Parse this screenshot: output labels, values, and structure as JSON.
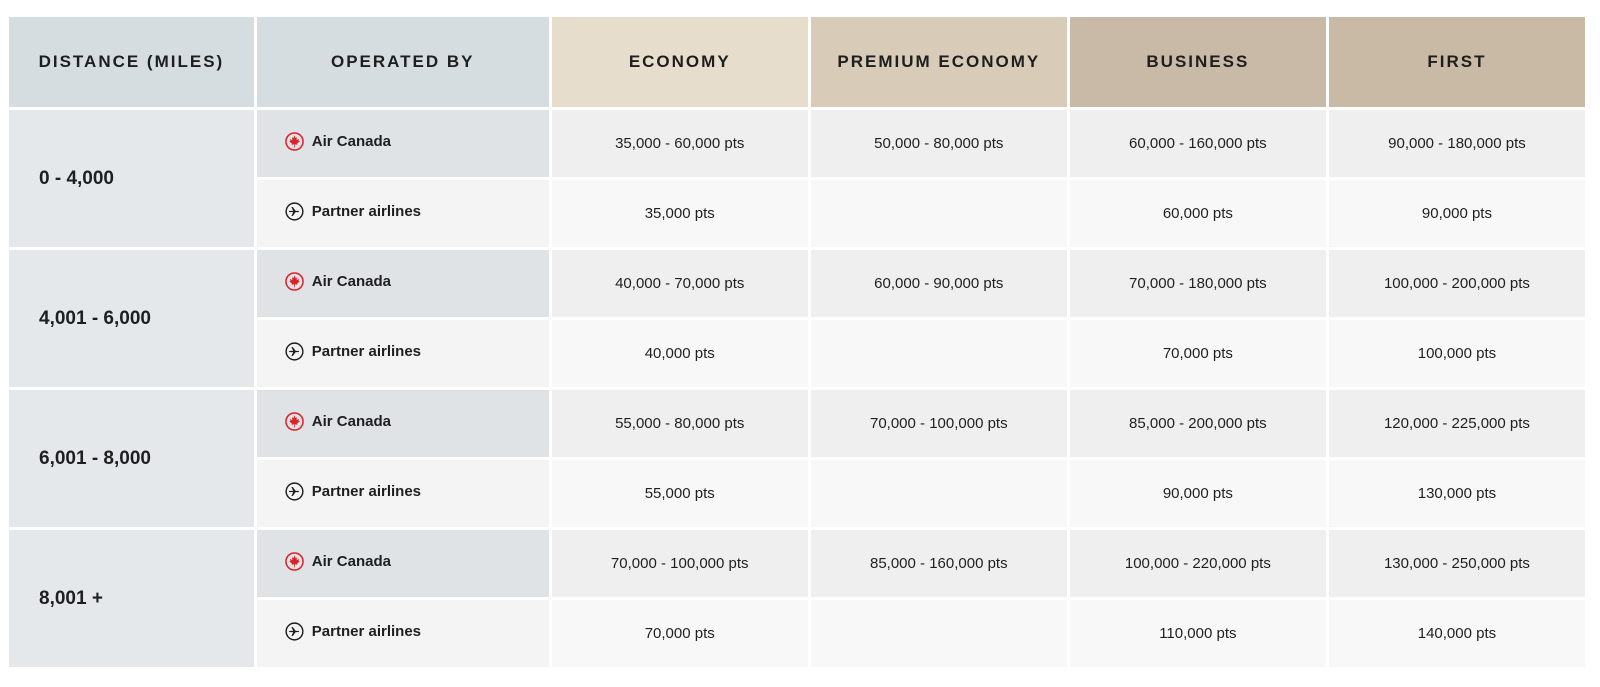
{
  "headers": {
    "distance": "DISTANCE (MILES)",
    "operated_by": "OPERATED BY",
    "economy": "ECONOMY",
    "premium_economy": "PREMIUM ECONOMY",
    "business": "BUSINESS",
    "first": "FIRST"
  },
  "colors": {
    "air_canada_red": "#d8232a",
    "partner_icon": "#1e1e1e"
  },
  "icons": {
    "air_canada": "maple-leaf-icon",
    "partner": "airplane-icon"
  },
  "groups": [
    {
      "range": "0 - 4,000",
      "rows": [
        {
          "operator": "Air Canada",
          "economy": "35,000 - 60,000 pts",
          "premium_economy": "50,000 - 80,000 pts",
          "business": "60,000 - 160,000 pts",
          "first": "90,000 - 180,000 pts"
        },
        {
          "operator": "Partner airlines",
          "economy": "35,000 pts",
          "premium_economy": "",
          "business": "60,000 pts",
          "first": "90,000 pts"
        }
      ]
    },
    {
      "range": "4,001 - 6,000",
      "rows": [
        {
          "operator": "Air Canada",
          "economy": "40,000 - 70,000 pts",
          "premium_economy": "60,000 - 90,000 pts",
          "business": "70,000 - 180,000 pts",
          "first": "100,000 - 200,000 pts"
        },
        {
          "operator": "Partner airlines",
          "economy": "40,000 pts",
          "premium_economy": "",
          "business": "70,000 pts",
          "first": "100,000 pts"
        }
      ]
    },
    {
      "range": "6,001 - 8,000",
      "rows": [
        {
          "operator": "Air Canada",
          "economy": "55,000 - 80,000 pts",
          "premium_economy": "70,000 - 100,000 pts",
          "business": "85,000 - 200,000 pts",
          "first": "120,000 - 225,000 pts"
        },
        {
          "operator": "Partner airlines",
          "economy": "55,000 pts",
          "premium_economy": "",
          "business": "90,000 pts",
          "first": "130,000 pts"
        }
      ]
    },
    {
      "range": "8,001 +",
      "rows": [
        {
          "operator": "Air Canada",
          "economy": "70,000 - 100,000 pts",
          "premium_economy": "85,000 - 160,000 pts",
          "business": "100,000 - 220,000 pts",
          "first": "130,000 - 250,000 pts"
        },
        {
          "operator": "Partner airlines",
          "economy": "70,000 pts",
          "premium_economy": "",
          "business": "110,000 pts",
          "first": "140,000 pts"
        }
      ]
    }
  ]
}
